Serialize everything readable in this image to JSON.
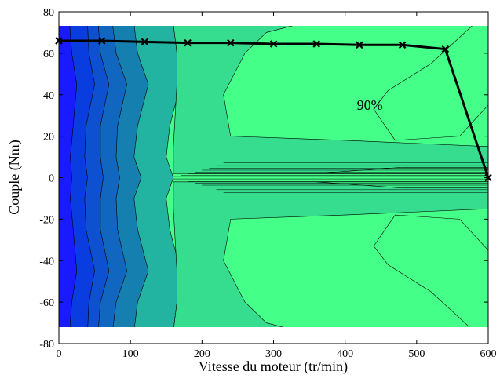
{
  "chart_data": {
    "type": "contour",
    "title": "",
    "xlabel": "Vitesse du moteur (tr/min)",
    "ylabel": "Couple (Nm)",
    "xlim": [
      0,
      600
    ],
    "ylim": [
      -80,
      80
    ],
    "data_xlim": [
      0,
      600
    ],
    "data_ylim": [
      -74,
      74
    ],
    "xticks": [
      0,
      100,
      200,
      300,
      400,
      500,
      600
    ],
    "yticks": [
      -80,
      -60,
      -40,
      -20,
      0,
      20,
      40,
      60,
      80
    ],
    "grid": false,
    "annotations": [
      {
        "text": "90%",
        "x": 480,
        "y": 35
      }
    ],
    "colormap": [
      "#1a1aff",
      "#0a3de0",
      "#0d50d0",
      "#1166c0",
      "#1580b0",
      "#1b9aa8",
      "#22b4a0",
      "#2bc996",
      "#36dd8e",
      "#3df28a",
      "#44ff88"
    ],
    "contour_boundaries_x_at_y_abs": [
      {
        "y": [
          0,
          10,
          25,
          45,
          60,
          74
        ],
        "x": [
          18,
          16,
          20,
          25,
          18,
          15
        ]
      },
      {
        "y": [
          0,
          10,
          25,
          45,
          60,
          74
        ],
        "x": [
          40,
          36,
          38,
          50,
          42,
          40
        ]
      },
      {
        "y": [
          0,
          10,
          25,
          45,
          60,
          74
        ],
        "x": [
          62,
          58,
          58,
          70,
          58,
          55
        ]
      },
      {
        "y": [
          0,
          10,
          25,
          45,
          60,
          74
        ],
        "x": [
          85,
          80,
          82,
          95,
          80,
          75
        ]
      },
      {
        "y": [
          0,
          10,
          25,
          45,
          60,
          74
        ],
        "x": [
          115,
          105,
          110,
          125,
          110,
          105
        ]
      },
      {
        "y": [
          0,
          10,
          25,
          45,
          60,
          74
        ],
        "x": [
          160,
          150,
          155,
          170,
          165,
          160
        ]
      }
    ],
    "series": [
      {
        "name": "",
        "type": "line",
        "marker": "x",
        "x": [
          0,
          60,
          120,
          180,
          240,
          300,
          360,
          420,
          480,
          540,
          600
        ],
        "y": [
          66,
          66,
          65.5,
          65,
          65,
          64.5,
          64.5,
          64,
          64,
          62,
          0
        ]
      }
    ]
  }
}
